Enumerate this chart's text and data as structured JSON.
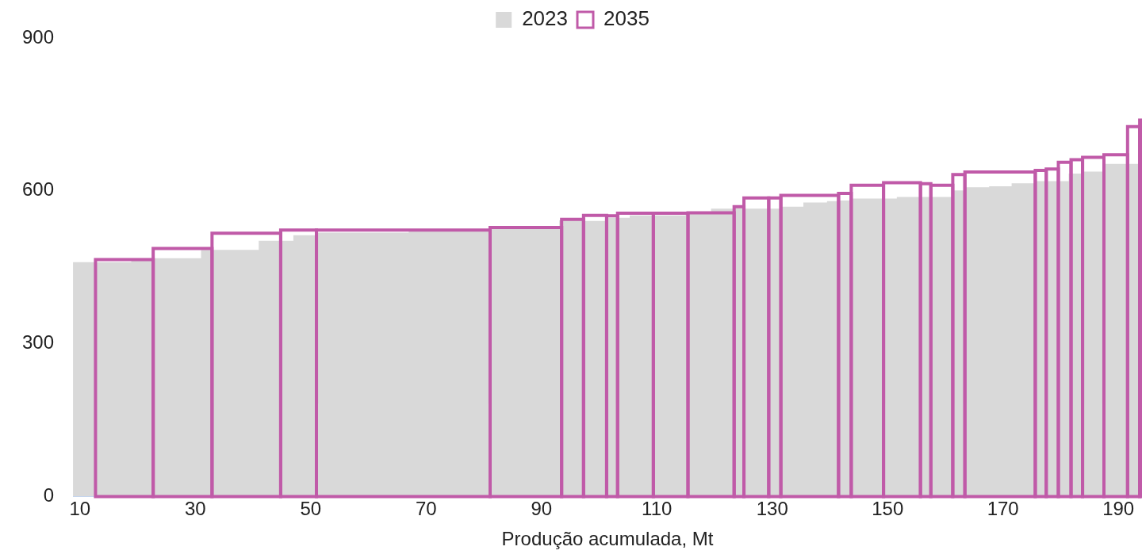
{
  "chart_data": {
    "type": "histogram",
    "xlabel": "Produção acumulada, Mt",
    "xlim": [
      8.8,
      194.1
    ],
    "xticks": [
      10,
      30,
      50,
      70,
      90,
      110,
      130,
      150,
      170,
      190
    ],
    "ylim": [
      0,
      900
    ],
    "yticks": [
      0,
      300,
      600,
      900
    ],
    "grid": false,
    "legend": "top",
    "bins": [
      12.7,
      22.7,
      32.9,
      44.8,
      51.0,
      81.1,
      93.5,
      97.3,
      101.3,
      103.2,
      109.4,
      115.4,
      123.4,
      125.1,
      129.4,
      131.5,
      141.5,
      143.7,
      149.3,
      155.7,
      157.5,
      161.3,
      163.4,
      175.6,
      177.5,
      179.6,
      181.8,
      183.8,
      187.5,
      191.6,
      193.7,
      194.1
    ],
    "series": [
      {
        "name": "2023",
        "type": "area",
        "color": "#d9d9d9",
        "x": [
          8.8,
          18.9,
          18.9,
          22.7,
          22.7,
          31.0,
          31.0,
          41.0,
          41.0,
          47.0,
          47.0,
          51.1,
          51.1,
          67.0,
          67.0,
          81.0,
          81.0,
          93.1,
          93.1,
          97.0,
          97.0,
          101.2,
          101.2,
          105.3,
          105.3,
          115.0,
          115.0,
          119.4,
          119.4,
          123.2,
          123.2,
          125.1,
          125.1,
          131.5,
          131.5,
          135.4,
          135.4,
          139.5,
          139.5,
          141.3,
          141.3,
          143.4,
          143.4,
          151.6,
          151.6,
          161.2,
          161.2,
          163.5,
          163.5,
          167.6,
          167.6,
          171.5,
          171.5,
          175.6,
          175.6,
          181.4,
          181.4,
          183.8,
          183.8,
          187.5,
          187.5,
          194.1
        ],
        "values": [
          460,
          460,
          466,
          466,
          468,
          468,
          484,
          484,
          502,
          502,
          513,
          513,
          518,
          518,
          521,
          521,
          526,
          526,
          542,
          542,
          541,
          541,
          547,
          547,
          552,
          552,
          557,
          557,
          565,
          565,
          567,
          567,
          565,
          565,
          569,
          569,
          577,
          577,
          580,
          580,
          581,
          581,
          585,
          585,
          588,
          588,
          601,
          601,
          607,
          607,
          609,
          609,
          615,
          615,
          619,
          619,
          634,
          634,
          638,
          638,
          653,
          653
        ]
      },
      {
        "name": "2035",
        "color": "#c05aa8",
        "values": [
          465,
          487,
          517,
          523,
          523,
          528,
          544,
          552,
          551,
          556,
          556,
          557,
          569,
          586,
          586,
          591,
          595,
          611,
          616,
          614,
          611,
          632,
          637,
          640,
          643,
          656,
          661,
          666,
          671,
          726,
          739
        ]
      }
    ]
  }
}
